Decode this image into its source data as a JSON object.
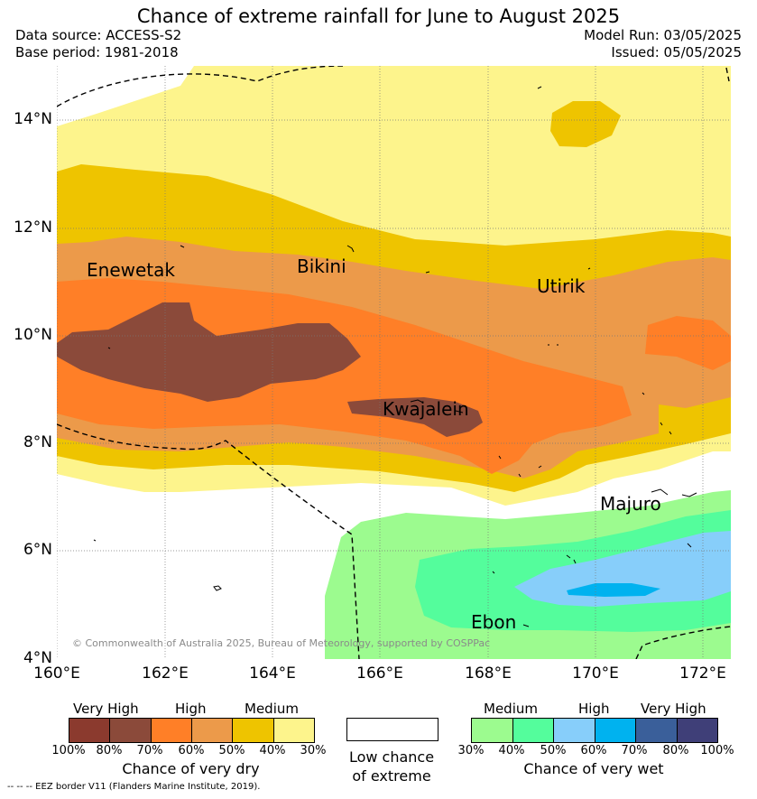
{
  "header": {
    "title": "Chance of extreme rainfall for June to August 2025",
    "data_source": "Data source: ACCESS-S2",
    "base_period": "Base period: 1981-2018",
    "model_run": "Model Run: 03/05/2025",
    "issued": "Issued: 05/05/2025"
  },
  "map": {
    "lat_labels": [
      "14°N",
      "12°N",
      "10°N",
      "8°N",
      "6°N",
      "4°N"
    ],
    "lon_labels": [
      "160°E",
      "162°E",
      "164°E",
      "166°E",
      "168°E",
      "170°E",
      "172°E"
    ],
    "places": [
      "Enewetak",
      "Bikini",
      "Utirik",
      "Kwajalein",
      "Majuro",
      "Ebon"
    ],
    "attribution": "© Commonwealth of Australia 2025, Bureau of Meteorology, supported by COSPPac"
  },
  "legend": {
    "dry": {
      "headers": [
        "Very High",
        "High",
        "Medium"
      ],
      "ticks": [
        "100%",
        "80%",
        "70%",
        "60%",
        "50%",
        "40%",
        "30%"
      ],
      "colors": [
        "#8b3a2e",
        "#8b4a3a",
        "#ff7f27",
        "#ec9a4a",
        "#eec400",
        "#fdf48c"
      ],
      "title": "Chance of very dry"
    },
    "neutral": {
      "title_line1": "Low chance",
      "title_line2": "of extreme",
      "color": "#ffffff"
    },
    "wet": {
      "headers": [
        "Medium",
        "High",
        "Very High"
      ],
      "ticks": [
        "30%",
        "40%",
        "50%",
        "60%",
        "70%",
        "80%",
        "100%"
      ],
      "colors": [
        "#9cfb8f",
        "#54fd9c",
        "#87cefa",
        "#00b2ef",
        "#3a5f9a",
        "#3f3f78"
      ],
      "title": "Chance of very wet"
    },
    "eez_note": "--  --  -- EEZ border V11 (Flanders Marine Institute, 2019)."
  }
}
